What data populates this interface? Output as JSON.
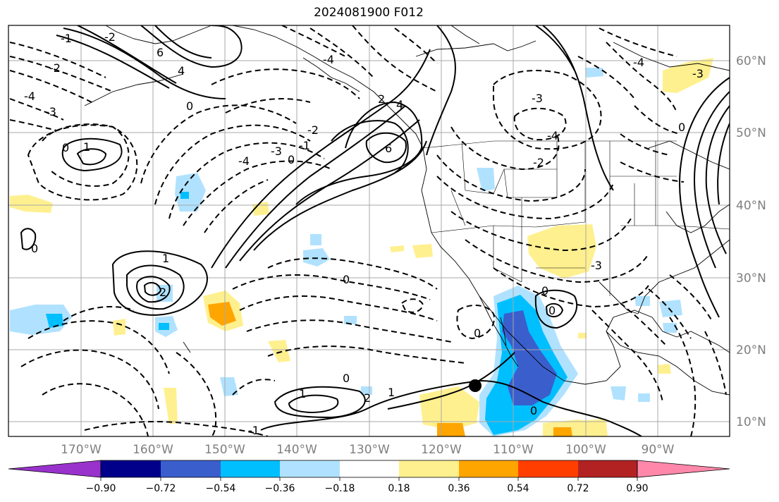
{
  "title": "2024081900 F012",
  "latitude_labels": [
    "60°N",
    "50°N",
    "40°N",
    "30°N",
    "20°N",
    "10°N"
  ],
  "longitude_labels": [
    "170°W",
    "160°W",
    "150°W",
    "140°W",
    "130°W",
    "120°W",
    "110°W",
    "100°W",
    "90°W"
  ],
  "colorbar": {
    "tick_labels": [
      "−0.90",
      "−0.72",
      "−0.54",
      "−0.36",
      "−0.18",
      "0.18",
      "0.36",
      "0.54",
      "0.72",
      "0.90"
    ],
    "colors": [
      "#9932cc",
      "#00008b",
      "#3a5fcd",
      "#00bfff",
      "#b0e2ff",
      "#ffffff",
      "#fff08f",
      "#ffa500",
      "#ff3e00",
      "#b22222",
      "#ff88aa"
    ]
  },
  "contour_labels": {
    "l1": "1",
    "l2": "2",
    "l3": "6",
    "l4": "4",
    "l5": "-1",
    "l6": "-2",
    "l7": "-3",
    "l8": "-4",
    "l9": "0",
    "l10": "1",
    "l11": "-4",
    "l12": "-3",
    "l13": "0",
    "l14": "-1",
    "l15": "-2",
    "l16": "2",
    "l17": "4",
    "l18": "6",
    "l19": "-3",
    "l20": "-4",
    "l21": "-2",
    "l22": "-4",
    "l23": "-3",
    "l24": "1",
    "l25": "2",
    "l26": "0",
    "l27": "0",
    "l28": "0",
    "l29": "-1",
    "l30": "1",
    "l31": "2",
    "l32": "0",
    "l33": "0",
    "l34": "-3",
    "l35": "1"
  },
  "marker": {
    "name": "storm-center-marker"
  }
}
